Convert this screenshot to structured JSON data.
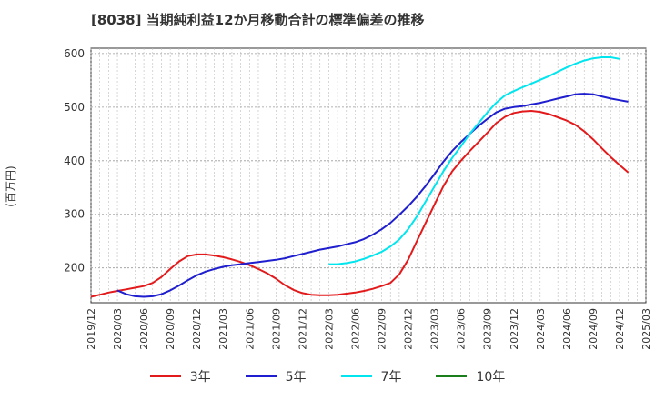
{
  "chart_data": {
    "type": "line",
    "title": "[8038]  当期純利益12か月移動合計の標準偏差の推移",
    "ylabel": "(百万円)",
    "xlabel": "",
    "ylim": [
      135,
      610
    ],
    "yticks": [
      200,
      300,
      400,
      500,
      600
    ],
    "x_range": [
      "2019/12",
      "2025/03"
    ],
    "xticks": [
      "2019/12",
      "2020/03",
      "2020/06",
      "2020/09",
      "2020/12",
      "2021/03",
      "2021/06",
      "2021/09",
      "2021/12",
      "2022/03",
      "2022/06",
      "2022/09",
      "2022/12",
      "2023/03",
      "2023/06",
      "2023/09",
      "2023/12",
      "2024/03",
      "2024/06",
      "2024/09",
      "2024/12",
      "2025/03"
    ],
    "grid": true,
    "legend_position": "bottom",
    "series": [
      {
        "name": "3年",
        "color": "#e31a1c",
        "points": [
          [
            "2019/12",
            146
          ],
          [
            "2020/01",
            150
          ],
          [
            "2020/02",
            154
          ],
          [
            "2020/03",
            157
          ],
          [
            "2020/04",
            160
          ],
          [
            "2020/05",
            163
          ],
          [
            "2020/06",
            166
          ],
          [
            "2020/07",
            172
          ],
          [
            "2020/08",
            183
          ],
          [
            "2020/09",
            198
          ],
          [
            "2020/10",
            212
          ],
          [
            "2020/11",
            222
          ],
          [
            "2020/12",
            225
          ],
          [
            "2021/01",
            225
          ],
          [
            "2021/02",
            223
          ],
          [
            "2021/03",
            220
          ],
          [
            "2021/04",
            216
          ],
          [
            "2021/05",
            211
          ],
          [
            "2021/06",
            205
          ],
          [
            "2021/07",
            198
          ],
          [
            "2021/08",
            190
          ],
          [
            "2021/09",
            180
          ],
          [
            "2021/10",
            168
          ],
          [
            "2021/11",
            159
          ],
          [
            "2021/12",
            153
          ],
          [
            "2022/01",
            150
          ],
          [
            "2022/02",
            149
          ],
          [
            "2022/03",
            149
          ],
          [
            "2022/04",
            150
          ],
          [
            "2022/05",
            152
          ],
          [
            "2022/06",
            154
          ],
          [
            "2022/07",
            157
          ],
          [
            "2022/08",
            161
          ],
          [
            "2022/09",
            166
          ],
          [
            "2022/10",
            172
          ],
          [
            "2022/11",
            188
          ],
          [
            "2022/12",
            215
          ],
          [
            "2023/01",
            250
          ],
          [
            "2023/02",
            284
          ],
          [
            "2023/03",
            318
          ],
          [
            "2023/04",
            352
          ],
          [
            "2023/05",
            380
          ],
          [
            "2023/06",
            400
          ],
          [
            "2023/07",
            418
          ],
          [
            "2023/08",
            435
          ],
          [
            "2023/09",
            452
          ],
          [
            "2023/10",
            470
          ],
          [
            "2023/11",
            482
          ],
          [
            "2023/12",
            489
          ],
          [
            "2024/01",
            492
          ],
          [
            "2024/02",
            493
          ],
          [
            "2024/03",
            491
          ],
          [
            "2024/04",
            487
          ],
          [
            "2024/05",
            481
          ],
          [
            "2024/06",
            475
          ],
          [
            "2024/07",
            467
          ],
          [
            "2024/08",
            455
          ],
          [
            "2024/09",
            440
          ],
          [
            "2024/10",
            423
          ],
          [
            "2024/11",
            407
          ],
          [
            "2024/12",
            392
          ],
          [
            "2025/01",
            378
          ]
        ]
      },
      {
        "name": "5年",
        "color": "#1f1fcf",
        "points": [
          [
            "2020/03",
            158
          ],
          [
            "2020/04",
            151
          ],
          [
            "2020/05",
            147
          ],
          [
            "2020/06",
            146
          ],
          [
            "2020/07",
            147
          ],
          [
            "2020/08",
            151
          ],
          [
            "2020/09",
            158
          ],
          [
            "2020/10",
            167
          ],
          [
            "2020/11",
            177
          ],
          [
            "2020/12",
            186
          ],
          [
            "2021/01",
            193
          ],
          [
            "2021/02",
            198
          ],
          [
            "2021/03",
            202
          ],
          [
            "2021/04",
            205
          ],
          [
            "2021/05",
            207
          ],
          [
            "2021/06",
            209
          ],
          [
            "2021/07",
            211
          ],
          [
            "2021/08",
            213
          ],
          [
            "2021/09",
            215
          ],
          [
            "2021/10",
            218
          ],
          [
            "2021/11",
            222
          ],
          [
            "2021/12",
            226
          ],
          [
            "2022/01",
            230
          ],
          [
            "2022/02",
            234
          ],
          [
            "2022/03",
            237
          ],
          [
            "2022/04",
            240
          ],
          [
            "2022/05",
            244
          ],
          [
            "2022/06",
            248
          ],
          [
            "2022/07",
            254
          ],
          [
            "2022/08",
            262
          ],
          [
            "2022/09",
            272
          ],
          [
            "2022/10",
            284
          ],
          [
            "2022/11",
            299
          ],
          [
            "2022/12",
            315
          ],
          [
            "2023/01",
            333
          ],
          [
            "2023/02",
            353
          ],
          [
            "2023/03",
            375
          ],
          [
            "2023/04",
            398
          ],
          [
            "2023/05",
            418
          ],
          [
            "2023/06",
            435
          ],
          [
            "2023/07",
            450
          ],
          [
            "2023/08",
            465
          ],
          [
            "2023/09",
            478
          ],
          [
            "2023/10",
            490
          ],
          [
            "2023/11",
            497
          ],
          [
            "2023/12",
            500
          ],
          [
            "2024/01",
            502
          ],
          [
            "2024/02",
            505
          ],
          [
            "2024/03",
            508
          ],
          [
            "2024/04",
            512
          ],
          [
            "2024/05",
            516
          ],
          [
            "2024/06",
            520
          ],
          [
            "2024/07",
            524
          ],
          [
            "2024/08",
            525
          ],
          [
            "2024/09",
            524
          ],
          [
            "2024/10",
            520
          ],
          [
            "2024/11",
            516
          ],
          [
            "2024/12",
            513
          ],
          [
            "2025/01",
            510
          ]
        ]
      },
      {
        "name": "7年",
        "color": "#00e5ee",
        "points": [
          [
            "2022/03",
            207
          ],
          [
            "2022/04",
            207
          ],
          [
            "2022/05",
            209
          ],
          [
            "2022/06",
            212
          ],
          [
            "2022/07",
            217
          ],
          [
            "2022/08",
            223
          ],
          [
            "2022/09",
            230
          ],
          [
            "2022/10",
            240
          ],
          [
            "2022/11",
            253
          ],
          [
            "2022/12",
            272
          ],
          [
            "2023/01",
            296
          ],
          [
            "2023/02",
            324
          ],
          [
            "2023/03",
            352
          ],
          [
            "2023/04",
            380
          ],
          [
            "2023/05",
            405
          ],
          [
            "2023/06",
            427
          ],
          [
            "2023/07",
            450
          ],
          [
            "2023/08",
            470
          ],
          [
            "2023/09",
            490
          ],
          [
            "2023/10",
            508
          ],
          [
            "2023/11",
            522
          ],
          [
            "2023/12",
            530
          ],
          [
            "2024/01",
            537
          ],
          [
            "2024/02",
            544
          ],
          [
            "2024/03",
            551
          ],
          [
            "2024/04",
            558
          ],
          [
            "2024/05",
            566
          ],
          [
            "2024/06",
            574
          ],
          [
            "2024/07",
            581
          ],
          [
            "2024/08",
            587
          ],
          [
            "2024/09",
            591
          ],
          [
            "2024/10",
            593
          ],
          [
            "2024/11",
            593
          ],
          [
            "2024/12",
            590
          ]
        ]
      },
      {
        "name": "10年",
        "color": "#1a7f1a",
        "points": []
      }
    ]
  }
}
